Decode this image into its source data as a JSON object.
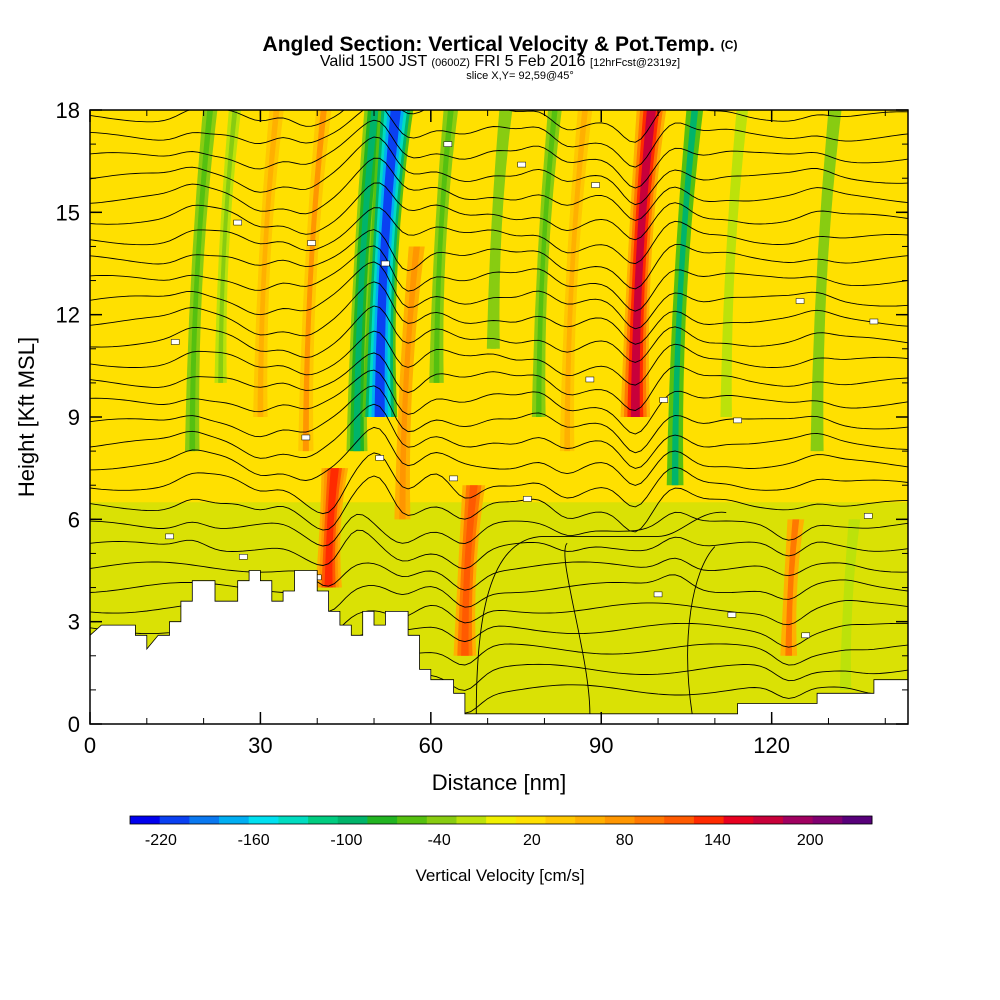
{
  "chart_data": {
    "type": "heatmap",
    "title": "Angled Section: Vertical Velocity & Pot.Temp.",
    "title_unit": "(C)",
    "subtitle_parts": [
      "Valid 1500 JST",
      "(0600Z)",
      "FRI 5 Feb 2016",
      "[12hrFcst@2319z]"
    ],
    "slice_label": "slice X,Y= 92,59@45°",
    "xlabel": "Distance [nm]",
    "ylabel": "Height [Kft MSL]",
    "xlim": [
      0,
      144
    ],
    "ylim": [
      0,
      18
    ],
    "x_ticks": [
      0,
      30,
      60,
      90,
      120
    ],
    "y_ticks": [
      0,
      3,
      6,
      9,
      12,
      15,
      18
    ],
    "colorbar": {
      "title": "Vertical Velocity [cm/s]",
      "range": [
        -240,
        240
      ],
      "labels": [
        -220,
        -160,
        -100,
        -40,
        20,
        80,
        140,
        200
      ],
      "colors": [
        "#0000ee",
        "#0a40f2",
        "#0a78f0",
        "#00aef2",
        "#00e0f0",
        "#00dcc0",
        "#00cc80",
        "#00b46a",
        "#22b422",
        "#55c010",
        "#88cc11",
        "#bce20a",
        "#f0f000",
        "#ffe000",
        "#ffc800",
        "#ffb000",
        "#ff9600",
        "#ff7800",
        "#ff5a00",
        "#ff2a00",
        "#e80020",
        "#c8003a",
        "#a00060",
        "#800070",
        "#58007a"
      ]
    },
    "velocity_columns": [
      {
        "x": 18,
        "v": -60,
        "top": 18,
        "bottom": 8
      },
      {
        "x": 23,
        "v": -30,
        "top": 18,
        "bottom": 10
      },
      {
        "x": 30,
        "v": 60,
        "top": 18,
        "bottom": 9
      },
      {
        "x": 38,
        "v": 70,
        "top": 18,
        "bottom": 8
      },
      {
        "x": 42,
        "v": 140,
        "top": 7.5,
        "bottom": 4
      },
      {
        "x": 47,
        "v": -100,
        "top": 18,
        "bottom": 8
      },
      {
        "x": 51,
        "v": -210,
        "top": 18,
        "bottom": 9
      },
      {
        "x": 55,
        "v": 80,
        "top": 14,
        "bottom": 6
      },
      {
        "x": 61,
        "v": -60,
        "top": 18,
        "bottom": 10
      },
      {
        "x": 66,
        "v": 120,
        "top": 7,
        "bottom": 2
      },
      {
        "x": 71,
        "v": -40,
        "top": 18,
        "bottom": 11
      },
      {
        "x": 79,
        "v": -50,
        "top": 18,
        "bottom": 9
      },
      {
        "x": 84,
        "v": 60,
        "top": 18,
        "bottom": 8
      },
      {
        "x": 96,
        "v": 170,
        "top": 18,
        "bottom": 9
      },
      {
        "x": 103,
        "v": -90,
        "top": 18,
        "bottom": 7
      },
      {
        "x": 112,
        "v": -20,
        "top": 18,
        "bottom": 9
      },
      {
        "x": 123,
        "v": 90,
        "top": 6,
        "bottom": 2
      },
      {
        "x": 128,
        "v": -40,
        "top": 18,
        "bottom": 8
      },
      {
        "x": 133,
        "v": -20,
        "top": 6,
        "bottom": 1
      }
    ],
    "terrain": [
      [
        0,
        2.6
      ],
      [
        2,
        2.9
      ],
      [
        8,
        2.9
      ],
      [
        8,
        2.6
      ],
      [
        10,
        2.6
      ],
      [
        10,
        2.2
      ],
      [
        12,
        2.6
      ],
      [
        14,
        2.6
      ],
      [
        14,
        3.0
      ],
      [
        16,
        3.0
      ],
      [
        16,
        3.6
      ],
      [
        18,
        3.6
      ],
      [
        18,
        4.2
      ],
      [
        22,
        4.2
      ],
      [
        22,
        3.6
      ],
      [
        26,
        3.6
      ],
      [
        26,
        4.2
      ],
      [
        28,
        4.2
      ],
      [
        28,
        4.5
      ],
      [
        30,
        4.5
      ],
      [
        30,
        4.2
      ],
      [
        32,
        4.2
      ],
      [
        32,
        3.6
      ],
      [
        34,
        3.6
      ],
      [
        34,
        3.9
      ],
      [
        36,
        3.9
      ],
      [
        36,
        4.5
      ],
      [
        40,
        4.5
      ],
      [
        40,
        3.9
      ],
      [
        42,
        3.9
      ],
      [
        42,
        3.3
      ],
      [
        44,
        3.3
      ],
      [
        44,
        2.9
      ],
      [
        46,
        2.9
      ],
      [
        46,
        2.6
      ],
      [
        48,
        2.6
      ],
      [
        48,
        3.3
      ],
      [
        50,
        3.3
      ],
      [
        50,
        2.9
      ],
      [
        52,
        2.9
      ],
      [
        52,
        3.3
      ],
      [
        56,
        3.3
      ],
      [
        56,
        2.6
      ],
      [
        58,
        2.6
      ],
      [
        58,
        1.6
      ],
      [
        60,
        1.6
      ],
      [
        60,
        1.3
      ],
      [
        64,
        1.3
      ],
      [
        64,
        0.9
      ],
      [
        66,
        0.9
      ],
      [
        66,
        0.3
      ],
      [
        88,
        0.3
      ],
      [
        88,
        0.3
      ],
      [
        114,
        0.3
      ],
      [
        114,
        0.6
      ],
      [
        128,
        0.6
      ],
      [
        128,
        0.9
      ],
      [
        138,
        0.9
      ],
      [
        138,
        1.3
      ],
      [
        144,
        1.3
      ]
    ],
    "theta_label_count": 24
  }
}
